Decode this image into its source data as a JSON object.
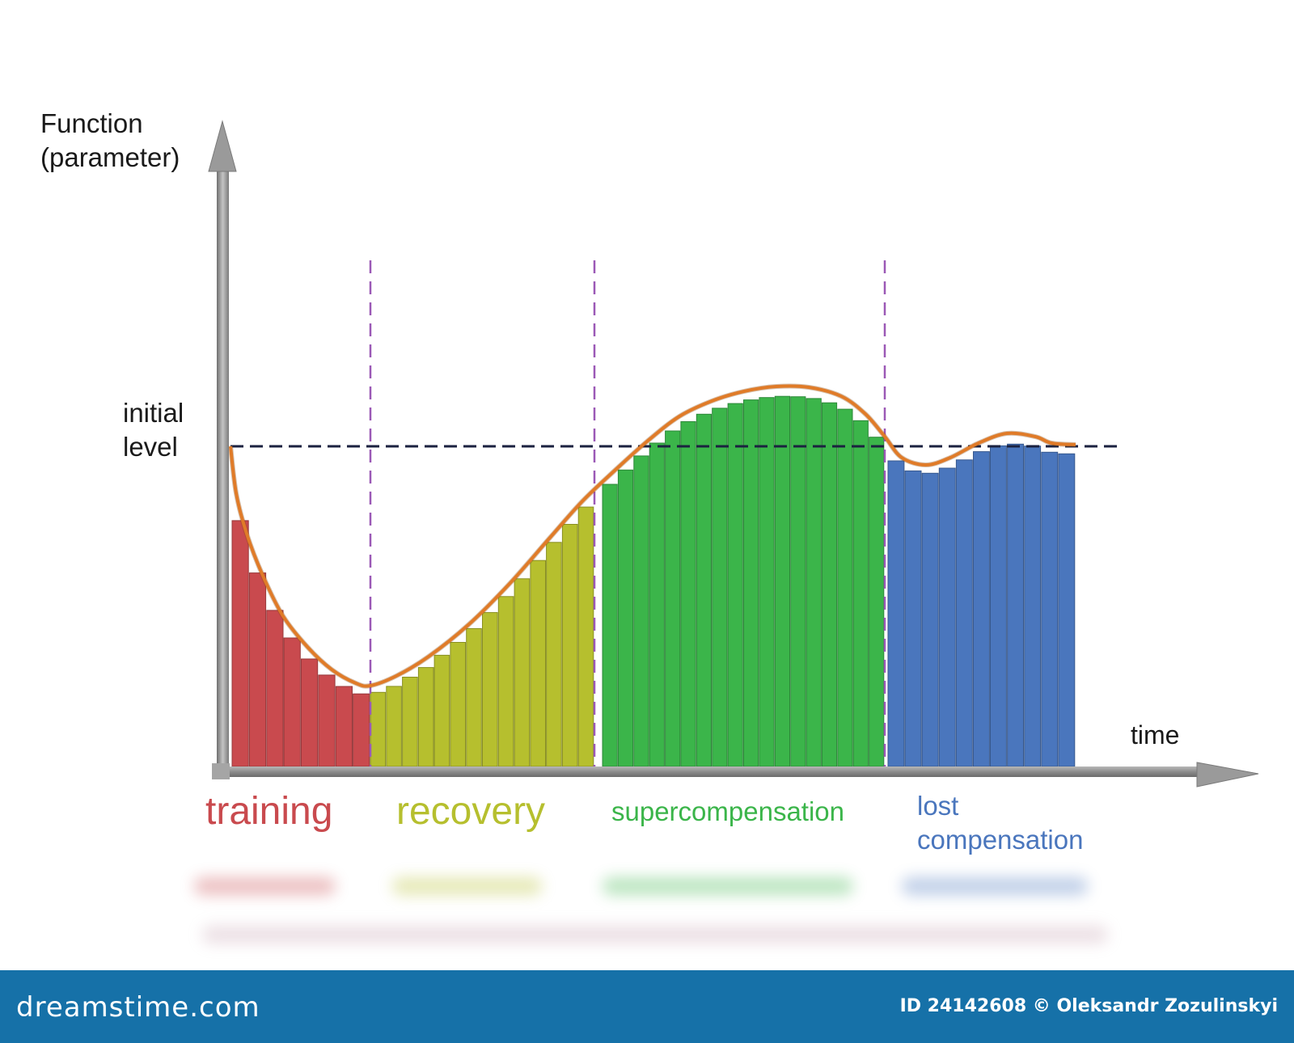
{
  "diagram": {
    "y_axis_label": [
      "Function",
      "(parameter)"
    ],
    "x_axis_label": "time",
    "initial_level_label": [
      "initial",
      "level"
    ],
    "phases": [
      {
        "name": "training",
        "color": "#c94a4e"
      },
      {
        "name": "recovery",
        "color": "#b6bf2e"
      },
      {
        "name": "supercompensation",
        "color": "#3bb54a"
      },
      {
        "name": "lost",
        "name2": "compensation",
        "color": "#4a76bd"
      }
    ],
    "curve_color": "#e07b28",
    "divider_color": "#9b59b6",
    "baseline_color": "#1b2240"
  },
  "footer": {
    "brand": "dreamstime.com",
    "credit": "ID 24142608 © Oleksandr Zozulinskyi",
    "background": "#1671a8"
  }
}
